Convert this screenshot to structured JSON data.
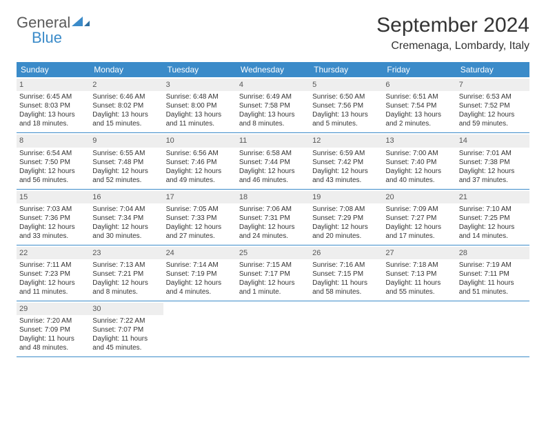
{
  "brand": {
    "word1": "General",
    "word2": "Blue"
  },
  "title": "September 2024",
  "location": "Cremenaga, Lombardy, Italy",
  "colors": {
    "header_bg": "#3b8bc9",
    "header_text": "#ffffff",
    "band_bg": "#eeeeee",
    "rule": "#3b8bc9",
    "text": "#333333",
    "logo_gray": "#5a5a5a",
    "logo_blue": "#3b8bc9",
    "page_bg": "#ffffff"
  },
  "typography": {
    "title_fontsize": 30,
    "location_fontsize": 16,
    "dayheader_fontsize": 12,
    "body_fontsize": 10
  },
  "dayHeaders": [
    "Sunday",
    "Monday",
    "Tuesday",
    "Wednesday",
    "Thursday",
    "Friday",
    "Saturday"
  ],
  "weeks": [
    [
      {
        "n": "1",
        "sunrise": "Sunrise: 6:45 AM",
        "sunset": "Sunset: 8:03 PM",
        "daylight": "Daylight: 13 hours and 18 minutes."
      },
      {
        "n": "2",
        "sunrise": "Sunrise: 6:46 AM",
        "sunset": "Sunset: 8:02 PM",
        "daylight": "Daylight: 13 hours and 15 minutes."
      },
      {
        "n": "3",
        "sunrise": "Sunrise: 6:48 AM",
        "sunset": "Sunset: 8:00 PM",
        "daylight": "Daylight: 13 hours and 11 minutes."
      },
      {
        "n": "4",
        "sunrise": "Sunrise: 6:49 AM",
        "sunset": "Sunset: 7:58 PM",
        "daylight": "Daylight: 13 hours and 8 minutes."
      },
      {
        "n": "5",
        "sunrise": "Sunrise: 6:50 AM",
        "sunset": "Sunset: 7:56 PM",
        "daylight": "Daylight: 13 hours and 5 minutes."
      },
      {
        "n": "6",
        "sunrise": "Sunrise: 6:51 AM",
        "sunset": "Sunset: 7:54 PM",
        "daylight": "Daylight: 13 hours and 2 minutes."
      },
      {
        "n": "7",
        "sunrise": "Sunrise: 6:53 AM",
        "sunset": "Sunset: 7:52 PM",
        "daylight": "Daylight: 12 hours and 59 minutes."
      }
    ],
    [
      {
        "n": "8",
        "sunrise": "Sunrise: 6:54 AM",
        "sunset": "Sunset: 7:50 PM",
        "daylight": "Daylight: 12 hours and 56 minutes."
      },
      {
        "n": "9",
        "sunrise": "Sunrise: 6:55 AM",
        "sunset": "Sunset: 7:48 PM",
        "daylight": "Daylight: 12 hours and 52 minutes."
      },
      {
        "n": "10",
        "sunrise": "Sunrise: 6:56 AM",
        "sunset": "Sunset: 7:46 PM",
        "daylight": "Daylight: 12 hours and 49 minutes."
      },
      {
        "n": "11",
        "sunrise": "Sunrise: 6:58 AM",
        "sunset": "Sunset: 7:44 PM",
        "daylight": "Daylight: 12 hours and 46 minutes."
      },
      {
        "n": "12",
        "sunrise": "Sunrise: 6:59 AM",
        "sunset": "Sunset: 7:42 PM",
        "daylight": "Daylight: 12 hours and 43 minutes."
      },
      {
        "n": "13",
        "sunrise": "Sunrise: 7:00 AM",
        "sunset": "Sunset: 7:40 PM",
        "daylight": "Daylight: 12 hours and 40 minutes."
      },
      {
        "n": "14",
        "sunrise": "Sunrise: 7:01 AM",
        "sunset": "Sunset: 7:38 PM",
        "daylight": "Daylight: 12 hours and 37 minutes."
      }
    ],
    [
      {
        "n": "15",
        "sunrise": "Sunrise: 7:03 AM",
        "sunset": "Sunset: 7:36 PM",
        "daylight": "Daylight: 12 hours and 33 minutes."
      },
      {
        "n": "16",
        "sunrise": "Sunrise: 7:04 AM",
        "sunset": "Sunset: 7:34 PM",
        "daylight": "Daylight: 12 hours and 30 minutes."
      },
      {
        "n": "17",
        "sunrise": "Sunrise: 7:05 AM",
        "sunset": "Sunset: 7:33 PM",
        "daylight": "Daylight: 12 hours and 27 minutes."
      },
      {
        "n": "18",
        "sunrise": "Sunrise: 7:06 AM",
        "sunset": "Sunset: 7:31 PM",
        "daylight": "Daylight: 12 hours and 24 minutes."
      },
      {
        "n": "19",
        "sunrise": "Sunrise: 7:08 AM",
        "sunset": "Sunset: 7:29 PM",
        "daylight": "Daylight: 12 hours and 20 minutes."
      },
      {
        "n": "20",
        "sunrise": "Sunrise: 7:09 AM",
        "sunset": "Sunset: 7:27 PM",
        "daylight": "Daylight: 12 hours and 17 minutes."
      },
      {
        "n": "21",
        "sunrise": "Sunrise: 7:10 AM",
        "sunset": "Sunset: 7:25 PM",
        "daylight": "Daylight: 12 hours and 14 minutes."
      }
    ],
    [
      {
        "n": "22",
        "sunrise": "Sunrise: 7:11 AM",
        "sunset": "Sunset: 7:23 PM",
        "daylight": "Daylight: 12 hours and 11 minutes."
      },
      {
        "n": "23",
        "sunrise": "Sunrise: 7:13 AM",
        "sunset": "Sunset: 7:21 PM",
        "daylight": "Daylight: 12 hours and 8 minutes."
      },
      {
        "n": "24",
        "sunrise": "Sunrise: 7:14 AM",
        "sunset": "Sunset: 7:19 PM",
        "daylight": "Daylight: 12 hours and 4 minutes."
      },
      {
        "n": "25",
        "sunrise": "Sunrise: 7:15 AM",
        "sunset": "Sunset: 7:17 PM",
        "daylight": "Daylight: 12 hours and 1 minute."
      },
      {
        "n": "26",
        "sunrise": "Sunrise: 7:16 AM",
        "sunset": "Sunset: 7:15 PM",
        "daylight": "Daylight: 11 hours and 58 minutes."
      },
      {
        "n": "27",
        "sunrise": "Sunrise: 7:18 AM",
        "sunset": "Sunset: 7:13 PM",
        "daylight": "Daylight: 11 hours and 55 minutes."
      },
      {
        "n": "28",
        "sunrise": "Sunrise: 7:19 AM",
        "sunset": "Sunset: 7:11 PM",
        "daylight": "Daylight: 11 hours and 51 minutes."
      }
    ],
    [
      {
        "n": "29",
        "sunrise": "Sunrise: 7:20 AM",
        "sunset": "Sunset: 7:09 PM",
        "daylight": "Daylight: 11 hours and 48 minutes."
      },
      {
        "n": "30",
        "sunrise": "Sunrise: 7:22 AM",
        "sunset": "Sunset: 7:07 PM",
        "daylight": "Daylight: 11 hours and 45 minutes."
      },
      null,
      null,
      null,
      null,
      null
    ]
  ]
}
